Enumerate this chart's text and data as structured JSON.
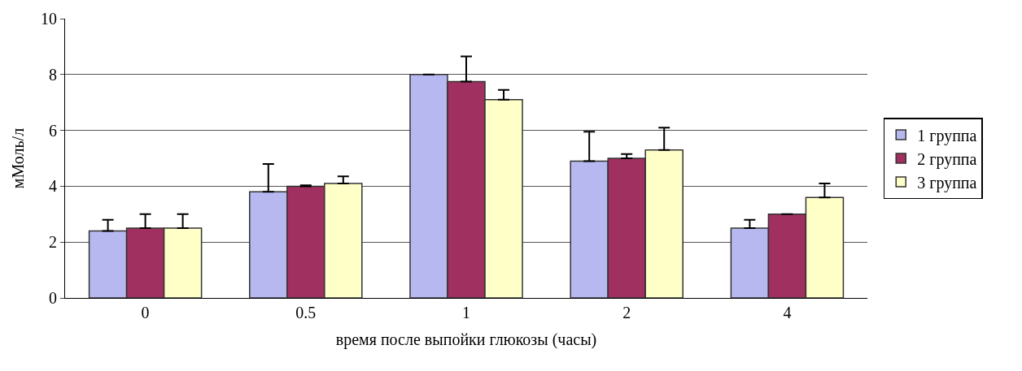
{
  "chart_data": {
    "type": "bar",
    "xlabel": "время после выпойки глюкозы (часы)",
    "ylabel": "мМоль/л",
    "categories": [
      "0",
      "0.5",
      "1",
      "2",
      "4"
    ],
    "series": [
      {
        "name": "1 группа",
        "color": "#b8b8f0",
        "values": [
          2.4,
          3.8,
          8.0,
          4.9,
          2.5
        ],
        "errors": [
          [
            2.4,
            2.8
          ],
          [
            3.8,
            4.8
          ],
          null,
          [
            4.9,
            5.95
          ],
          [
            2.5,
            2.8
          ]
        ]
      },
      {
        "name": "2 группа",
        "color": "#a0305f",
        "values": [
          2.5,
          4.0,
          7.75,
          5.0,
          3.0
        ],
        "errors": [
          [
            2.5,
            3.0
          ],
          [
            4.0,
            4.03
          ],
          [
            7.75,
            8.65
          ],
          [
            5.0,
            5.15
          ],
          null
        ]
      },
      {
        "name": "3 группа",
        "color": "#ffffc8",
        "values": [
          2.5,
          4.1,
          7.1,
          5.3,
          3.6
        ],
        "errors": [
          [
            2.5,
            3.0
          ],
          [
            4.1,
            4.35
          ],
          [
            7.1,
            7.45
          ],
          [
            5.3,
            6.1
          ],
          [
            3.6,
            4.1
          ]
        ]
      }
    ],
    "ylim": [
      0,
      10
    ],
    "yticks": [
      0,
      2,
      4,
      6,
      8,
      10
    ],
    "grid": "y",
    "legend": "right"
  }
}
